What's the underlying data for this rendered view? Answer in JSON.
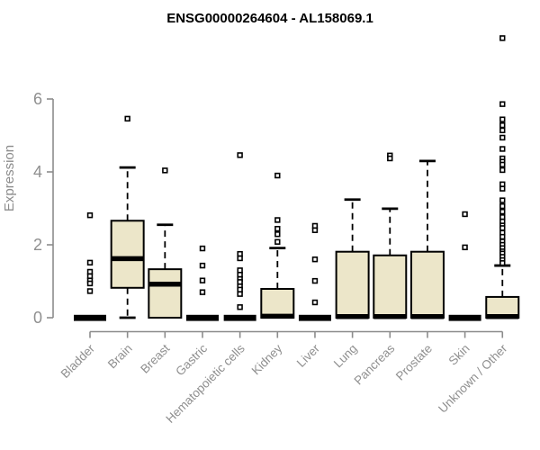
{
  "chart_data": {
    "type": "boxplot",
    "title": "ENSG00000264604 - AL158069.1",
    "ylabel": "Expression",
    "xlabel": "",
    "yticks": [
      0,
      2,
      4,
      6
    ],
    "ylim": [
      0,
      6
    ],
    "grid": false,
    "legend": null,
    "categories": [
      "Bladder",
      "Brain",
      "Breast",
      "Gastric",
      "Hematopoietic cells",
      "Kidney",
      "Liver",
      "Lung",
      "Pancreas",
      "Prostate",
      "Skin",
      "Unknown / Other"
    ],
    "series": [
      {
        "label": "Bladder",
        "q1": 0,
        "median": 0,
        "q3": 0,
        "whisker_low": 0,
        "whisker_high": 0,
        "outliers": [
          2.81,
          1.51,
          1.26,
          1.14,
          1.02,
          0.94,
          0.73
        ]
      },
      {
        "label": "Brain",
        "q1": 0.82,
        "median": 1.62,
        "q3": 2.66,
        "whisker_low": 0,
        "whisker_high": 4.12,
        "outliers": [
          5.46
        ]
      },
      {
        "label": "Breast",
        "q1": 0,
        "median": 0.92,
        "q3": 1.33,
        "whisker_low": 0,
        "whisker_high": 2.55,
        "outliers": [
          4.04
        ]
      },
      {
        "label": "Gastric",
        "q1": 0,
        "median": 0,
        "q3": 0,
        "whisker_low": 0,
        "whisker_high": 0,
        "outliers": [
          1.9,
          1.43,
          1.02,
          0.7
        ]
      },
      {
        "label": "Hematopoietic cells",
        "q1": 0,
        "median": 0,
        "q3": 0,
        "whisker_low": 0,
        "whisker_high": 0,
        "outliers": [
          4.46,
          1.75,
          1.63,
          1.3,
          1.18,
          1.06,
          0.98,
          0.86,
          0.77,
          0.65,
          0.29
        ]
      },
      {
        "label": "Kidney",
        "q1": 0,
        "median": 0.04,
        "q3": 0.79,
        "whisker_low": 0,
        "whisker_high": 1.91,
        "outliers": [
          3.9,
          2.68,
          2.44,
          2.29,
          2.08
        ]
      },
      {
        "label": "Liver",
        "q1": 0,
        "median": 0,
        "q3": 0,
        "whisker_low": 0,
        "whisker_high": 0,
        "outliers": [
          2.52,
          2.4,
          1.6,
          1.01,
          0.42
        ]
      },
      {
        "label": "Lung",
        "q1": 0,
        "median": 0.03,
        "q3": 1.81,
        "whisker_low": 0,
        "whisker_high": 3.24,
        "outliers": []
      },
      {
        "label": "Pancreas",
        "q1": 0,
        "median": 0.03,
        "q3": 1.71,
        "whisker_low": 0,
        "whisker_high": 2.99,
        "outliers": [
          4.45,
          4.37
        ]
      },
      {
        "label": "Prostate",
        "q1": 0,
        "median": 0.03,
        "q3": 1.81,
        "whisker_low": 0,
        "whisker_high": 4.3,
        "outliers": []
      },
      {
        "label": "Skin",
        "q1": 0,
        "median": 0,
        "q3": 0,
        "whisker_low": 0,
        "whisker_high": 0,
        "outliers": [
          2.84,
          1.93
        ]
      },
      {
        "label": "Unknown / Other",
        "q1": 0,
        "median": 0.03,
        "q3": 0.57,
        "whisker_low": 0,
        "whisker_high": 1.43,
        "outliers": [
          7.67,
          5.86,
          5.44,
          5.28,
          5.14,
          4.94,
          4.63,
          4.37,
          4.28,
          4.2,
          4.05,
          3.66,
          3.54,
          3.22,
          3.06,
          2.91,
          2.76,
          2.64,
          2.53,
          2.46,
          2.33,
          2.22,
          2.09,
          2.0,
          1.91,
          1.82,
          1.76,
          1.67,
          1.58,
          1.5
        ]
      }
    ]
  },
  "colors": {
    "background": "#ffffff",
    "box_fill": "#ece6c9",
    "box_border": "#000000",
    "median": "#000000",
    "whisker": "#000000",
    "outlier_fill": "#ffffff",
    "outlier_stroke": "#000000",
    "axis": "#8c8c8c",
    "tick_label": "#8f8f8f",
    "title": "#000000"
  }
}
